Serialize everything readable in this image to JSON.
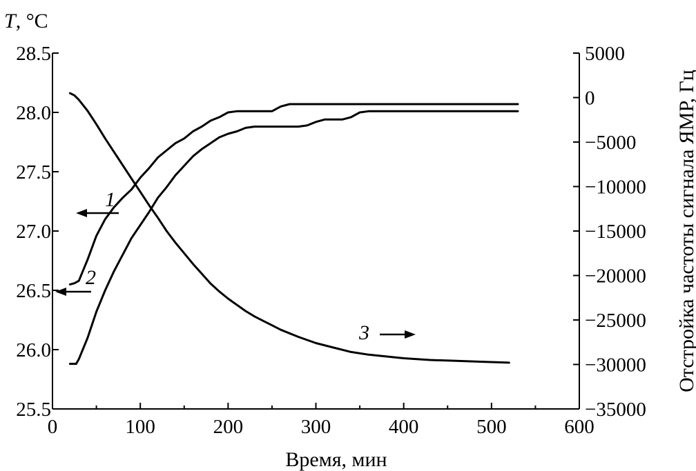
{
  "chart_data": {
    "type": "line",
    "y_axis_title_left": {
      "symbol": "T",
      "unit": ", °C"
    },
    "xlabel": "Время, мин",
    "ylabel_right": "Отстройка частоты сигнала ЯМР, Гц",
    "xlim": [
      0,
      600
    ],
    "ylim_left": [
      25.5,
      28.5
    ],
    "ylim_right": [
      -35000,
      5000
    ],
    "x_ticks": [
      "0",
      "100",
      "200",
      "300",
      "400",
      "500",
      "600"
    ],
    "y_left_ticks": [
      "28.5",
      "28.0",
      "27.5",
      "27.0",
      "26.5",
      "26.0",
      "25.5"
    ],
    "y_right_ticks": [
      "5000",
      "0",
      "−5000",
      "−10000",
      "−15000",
      "−20000",
      "−25000",
      "−30000",
      "−35000"
    ],
    "grid": false,
    "legend": "none",
    "series": [
      {
        "label": "1",
        "axis": "left",
        "arrow": "left",
        "x": [
          20,
          25,
          30,
          40,
          50,
          60,
          70,
          80,
          90,
          100,
          110,
          120,
          130,
          140,
          150,
          160,
          170,
          180,
          190,
          200,
          210,
          220,
          230,
          240,
          250,
          255,
          260,
          270,
          300,
          400,
          530
        ],
        "y": [
          26.55,
          26.56,
          26.58,
          26.76,
          26.96,
          27.1,
          27.2,
          27.28,
          27.35,
          27.45,
          27.53,
          27.62,
          27.68,
          27.74,
          27.78,
          27.84,
          27.88,
          27.93,
          27.96,
          28.0,
          28.01,
          28.01,
          28.01,
          28.01,
          28.01,
          28.03,
          28.05,
          28.07,
          28.07,
          28.07,
          28.07
        ]
      },
      {
        "label": "2",
        "axis": "left",
        "arrow": "left",
        "x": [
          20,
          27,
          30,
          40,
          50,
          60,
          70,
          80,
          90,
          100,
          110,
          120,
          130,
          140,
          150,
          160,
          170,
          180,
          190,
          200,
          210,
          220,
          230,
          240,
          250,
          260,
          270,
          280,
          290,
          300,
          310,
          320,
          330,
          340,
          350,
          360,
          380,
          530
        ],
        "y": [
          25.88,
          25.88,
          25.92,
          26.1,
          26.32,
          26.5,
          26.66,
          26.8,
          26.94,
          27.05,
          27.16,
          27.28,
          27.37,
          27.47,
          27.55,
          27.63,
          27.69,
          27.74,
          27.79,
          27.82,
          27.84,
          27.87,
          27.88,
          27.88,
          27.88,
          27.88,
          27.88,
          27.88,
          27.89,
          27.92,
          27.94,
          27.94,
          27.94,
          27.96,
          28.0,
          28.01,
          28.01,
          28.01
        ]
      },
      {
        "label": "3",
        "axis": "right",
        "arrow": "right",
        "x": [
          20,
          25,
          30,
          40,
          50,
          60,
          70,
          80,
          90,
          100,
          110,
          120,
          130,
          140,
          150,
          160,
          170,
          180,
          190,
          200,
          210,
          220,
          230,
          240,
          250,
          260,
          280,
          300,
          320,
          340,
          360,
          380,
          400,
          430,
          460,
          490,
          520
        ],
        "y": [
          500,
          250,
          -250,
          -1500,
          -3000,
          -4600,
          -6100,
          -7600,
          -9100,
          -10600,
          -12100,
          -13500,
          -15000,
          -16300,
          -17500,
          -18700,
          -19800,
          -20900,
          -21800,
          -22600,
          -23300,
          -24000,
          -24600,
          -25100,
          -25600,
          -26100,
          -26900,
          -27600,
          -28100,
          -28600,
          -28900,
          -29100,
          -29300,
          -29500,
          -29600,
          -29700,
          -29800
        ]
      }
    ]
  }
}
